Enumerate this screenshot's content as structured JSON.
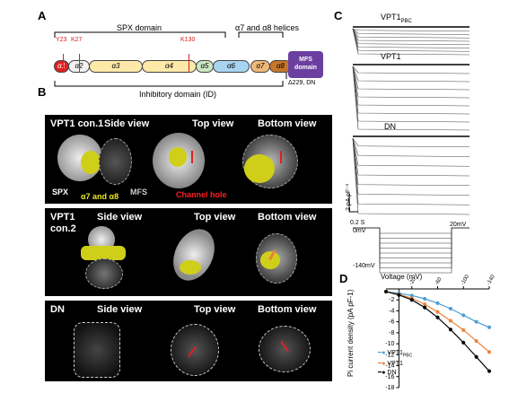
{
  "panels": {
    "a": "A",
    "b": "B",
    "c": "C",
    "d": "D"
  },
  "domain_map": {
    "spx_label": "SPX domain",
    "alpha_helices_label": "α7 and α8 helices",
    "segments": [
      "α1",
      "α2",
      "α3",
      "α4",
      "α5",
      "α6",
      "α7",
      "α8"
    ],
    "mutations": {
      "y23": "Y23",
      "k27": "K27",
      "k130": "K130"
    },
    "mfs_label": "MFS domain",
    "inhibitory_label": "Inhibitory domain (ID)",
    "delta_label": "Δ229, DN"
  },
  "structures": {
    "rows": [
      {
        "title": "VPT1 con.1",
        "views": [
          "Side view",
          "Top view",
          "Bottom view"
        ],
        "annotations": {
          "spx": "SPX",
          "a78": "α7 and α8",
          "mfs": "MFS",
          "channel": "Channel hole"
        }
      },
      {
        "title": "VPT1 con.2",
        "views": [
          "Side view",
          "Top view",
          "Bottom view"
        ]
      },
      {
        "title": "DN",
        "views": [
          "Side view",
          "Top view",
          "Bottom view"
        ]
      }
    ]
  },
  "traces": {
    "labels": {
      "vpt1pbc": "VPT1",
      "vpt1pbc_sub": "PBC",
      "vpt1": "VPT1",
      "dn": "DN"
    },
    "scale_y": "2 pA pF⁻¹",
    "scale_x": "0.2 S",
    "v_zero": "0mV",
    "v_top": "20mV",
    "v_bottom": "-140mV"
  },
  "chart_data": {
    "type": "line",
    "title": "",
    "xlabel": "Voltage (mV)",
    "ylabel": "Pi current density (pA pF-1)",
    "x": [
      20,
      0,
      -20,
      -40,
      -60,
      -80,
      -100,
      -120,
      -140
    ],
    "x_ticks": [
      "-20",
      "-60",
      "-100",
      "-140"
    ],
    "y_ticks": [
      "-2",
      "-4",
      "-6",
      "-8",
      "-10",
      "-12",
      "-14",
      "-16",
      "-18"
    ],
    "ylim": [
      -18,
      0
    ],
    "series": [
      {
        "name": "VPT1PBC",
        "color": "#4a9fd8",
        "values": [
          -0.5,
          -0.8,
          -1.2,
          -1.8,
          -2.6,
          -3.6,
          -4.8,
          -6.0,
          -7.0
        ]
      },
      {
        "name": "VPT1",
        "color": "#e8823a",
        "values": [
          -0.5,
          -1.0,
          -1.7,
          -2.8,
          -4.2,
          -5.8,
          -7.5,
          -9.5,
          -11.5
        ]
      },
      {
        "name": "DN",
        "color": "#000000",
        "values": [
          -0.5,
          -1.1,
          -2.0,
          -3.4,
          -5.2,
          -7.4,
          -9.8,
          -12.4,
          -15.0
        ]
      }
    ],
    "legend": [
      {
        "label": "VPT1",
        "sub": "PBC"
      },
      {
        "label": "VPT1",
        "sub": ""
      },
      {
        "label": "DN",
        "sub": ""
      }
    ]
  }
}
